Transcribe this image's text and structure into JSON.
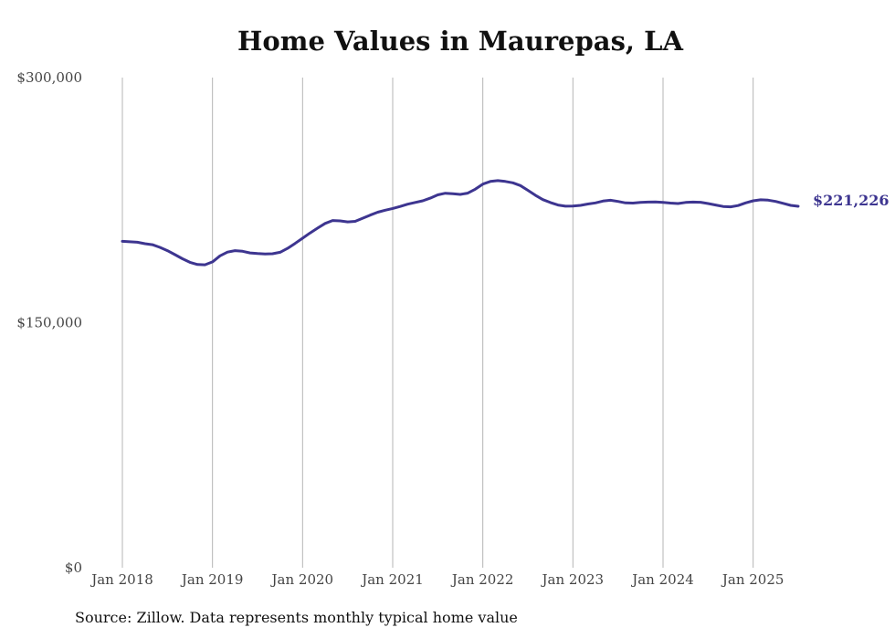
{
  "chart_data": {
    "type": "line",
    "title": "Home Values in Maurepas, LA",
    "source": "Source: Zillow. Data represents monthly typical home value",
    "x_ticks": [
      "Jan 2018",
      "Jan 2019",
      "Jan 2020",
      "Jan 2021",
      "Jan 2022",
      "Jan 2023",
      "Jan 2024",
      "Jan 2025"
    ],
    "y_ticks": [
      {
        "value": 0,
        "label": "$0"
      },
      {
        "value": 150000,
        "label": "$150,000"
      },
      {
        "value": 300000,
        "label": "$300,000"
      }
    ],
    "ylim": [
      0,
      300000
    ],
    "xlim": [
      "2018-01",
      "2025-07"
    ],
    "grid": "vertical",
    "end_label": "$221,226",
    "line_color": "#3d3590",
    "series": [
      {
        "points": [
          [
            "2018-01",
            199800
          ],
          [
            "2018-02",
            199500
          ],
          [
            "2018-03",
            199200
          ],
          [
            "2018-04",
            198300
          ],
          [
            "2018-05",
            197700
          ],
          [
            "2018-06",
            196100
          ],
          [
            "2018-07",
            194100
          ],
          [
            "2018-08",
            191600
          ],
          [
            "2018-09",
            189100
          ],
          [
            "2018-10",
            186900
          ],
          [
            "2018-11",
            185600
          ],
          [
            "2018-12",
            185400
          ],
          [
            "2019-01",
            187200
          ],
          [
            "2019-02",
            190900
          ],
          [
            "2019-03",
            193200
          ],
          [
            "2019-04",
            194100
          ],
          [
            "2019-05",
            193700
          ],
          [
            "2019-06",
            192700
          ],
          [
            "2019-07",
            192300
          ],
          [
            "2019-08",
            192000
          ],
          [
            "2019-09",
            192200
          ],
          [
            "2019-10",
            193100
          ],
          [
            "2019-11",
            195500
          ],
          [
            "2019-12",
            198500
          ],
          [
            "2020-01",
            201700
          ],
          [
            "2020-02",
            204900
          ],
          [
            "2020-03",
            207900
          ],
          [
            "2020-04",
            210700
          ],
          [
            "2020-05",
            212500
          ],
          [
            "2020-06",
            212300
          ],
          [
            "2020-07",
            211700
          ],
          [
            "2020-08",
            212000
          ],
          [
            "2020-09",
            213900
          ],
          [
            "2020-10",
            215800
          ],
          [
            "2020-11",
            217600
          ],
          [
            "2020-12",
            218800
          ],
          [
            "2021-01",
            219900
          ],
          [
            "2021-02",
            221100
          ],
          [
            "2021-03",
            222500
          ],
          [
            "2021-04",
            223600
          ],
          [
            "2021-05",
            224600
          ],
          [
            "2021-06",
            226200
          ],
          [
            "2021-07",
            228200
          ],
          [
            "2021-08",
            229200
          ],
          [
            "2021-09",
            228900
          ],
          [
            "2021-10",
            228500
          ],
          [
            "2021-11",
            229300
          ],
          [
            "2021-12",
            231700
          ],
          [
            "2022-01",
            234800
          ],
          [
            "2022-02",
            236400
          ],
          [
            "2022-03",
            236900
          ],
          [
            "2022-04",
            236400
          ],
          [
            "2022-05",
            235600
          ],
          [
            "2022-06",
            233900
          ],
          [
            "2022-07",
            231000
          ],
          [
            "2022-08",
            228000
          ],
          [
            "2022-09",
            225300
          ],
          [
            "2022-10",
            223500
          ],
          [
            "2022-11",
            222000
          ],
          [
            "2022-12",
            221300
          ],
          [
            "2023-01",
            221400
          ],
          [
            "2023-02",
            221800
          ],
          [
            "2023-03",
            222600
          ],
          [
            "2023-04",
            223300
          ],
          [
            "2023-05",
            224400
          ],
          [
            "2023-06",
            224900
          ],
          [
            "2023-07",
            224200
          ],
          [
            "2023-08",
            223300
          ],
          [
            "2023-09",
            223200
          ],
          [
            "2023-10",
            223600
          ],
          [
            "2023-11",
            223800
          ],
          [
            "2023-12",
            223900
          ],
          [
            "2024-01",
            223600
          ],
          [
            "2024-02",
            223200
          ],
          [
            "2024-03",
            222900
          ],
          [
            "2024-04",
            223600
          ],
          [
            "2024-05",
            223800
          ],
          [
            "2024-06",
            223700
          ],
          [
            "2024-07",
            222900
          ],
          [
            "2024-08",
            222000
          ],
          [
            "2024-09",
            221100
          ],
          [
            "2024-10",
            220900
          ],
          [
            "2024-11",
            221700
          ],
          [
            "2024-12",
            223300
          ],
          [
            "2025-01",
            224600
          ],
          [
            "2025-02",
            225200
          ],
          [
            "2025-03",
            225000
          ],
          [
            "2025-04",
            224200
          ],
          [
            "2025-05",
            223000
          ],
          [
            "2025-06",
            221800
          ],
          [
            "2025-07",
            221226
          ]
        ]
      }
    ]
  }
}
